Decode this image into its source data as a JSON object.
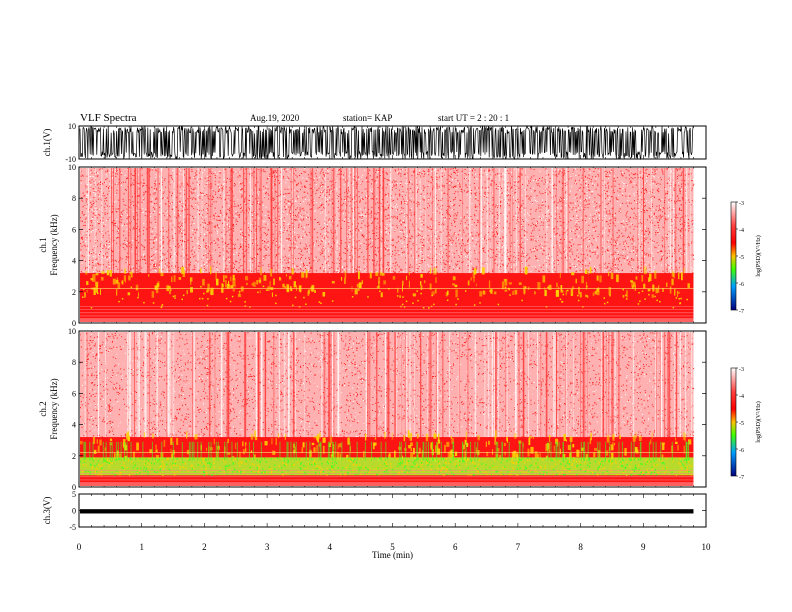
{
  "header": {
    "title": "VLF Spectra",
    "date": "Aug.19, 2020",
    "station": "station= KAP",
    "start": "start  UT =   2 : 20 : 1"
  },
  "chart_data": [
    {
      "type": "line",
      "panel": "ch1-waveform",
      "ylabel": "ch.1(V)",
      "ylim": [
        -10,
        10
      ],
      "yticks": [
        "10",
        "-10"
      ],
      "xlim": [
        0,
        10
      ],
      "note_series": "dense oscillating waveform filling most of ±10 V range"
    },
    {
      "type": "heatmap",
      "panel": "ch1-spectrogram",
      "ylabel": "ch.1",
      "ylabel2": "Frequency (kHz)",
      "ylim": [
        0,
        10
      ],
      "yticks": [
        "0",
        "2",
        "4",
        "6",
        "8",
        "10"
      ],
      "xlim": [
        0,
        10
      ],
      "data_end_min": 9.8,
      "colorbar": {
        "label": "log(PSD)(V²/Hz)",
        "range": [
          -7,
          -3
        ],
        "ticks": [
          "-3",
          "-4",
          "-5",
          "-6",
          "-7"
        ]
      }
    },
    {
      "type": "heatmap",
      "panel": "ch2-spectrogram",
      "ylabel": "ch.2",
      "ylabel2": "Frequency (kHz)",
      "ylim": [
        0,
        10
      ],
      "yticks": [
        "0",
        "2",
        "4",
        "6",
        "8",
        "10"
      ],
      "xlim": [
        0,
        10
      ],
      "data_end_min": 9.8,
      "colorbar": {
        "label": "log(PSD)(V²/Hz)",
        "range": [
          -7,
          -3
        ],
        "ticks": [
          "-3",
          "-4",
          "-5",
          "-6",
          "-7"
        ]
      }
    },
    {
      "type": "line",
      "panel": "ch3-waveform",
      "ylabel": "ch.3(V)",
      "ylim": [
        -5,
        5
      ],
      "yticks": [
        "5",
        "0",
        "-5"
      ],
      "xlim": [
        0,
        10
      ],
      "xlabel": "Time (min)",
      "xticks": [
        "0",
        "1",
        "2",
        "3",
        "4",
        "5",
        "6",
        "7",
        "8",
        "9",
        "10"
      ]
    }
  ],
  "colors": {
    "red": "#ff2020",
    "yellow": "#ffd000",
    "green": "#40ff20",
    "axis": "#000000"
  }
}
